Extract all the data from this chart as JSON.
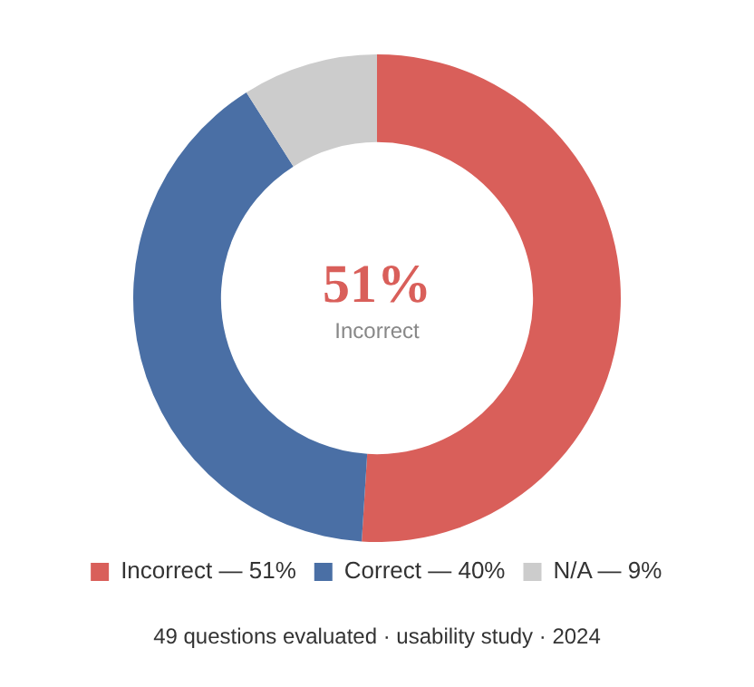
{
  "chart_data": {
    "type": "donut",
    "categories": [
      "Incorrect — 51%",
      "Correct — 40%",
      "N/A — 9%"
    ],
    "values": [
      51,
      40,
      9
    ],
    "colors": [
      "#d95f5a",
      "#4a6fa5",
      "#cccccc"
    ],
    "legend": "bottom",
    "annotations": [
      "51%",
      "Incorrect",
      "49 questions evaluated · usability study · 2024"
    ]
  }
}
